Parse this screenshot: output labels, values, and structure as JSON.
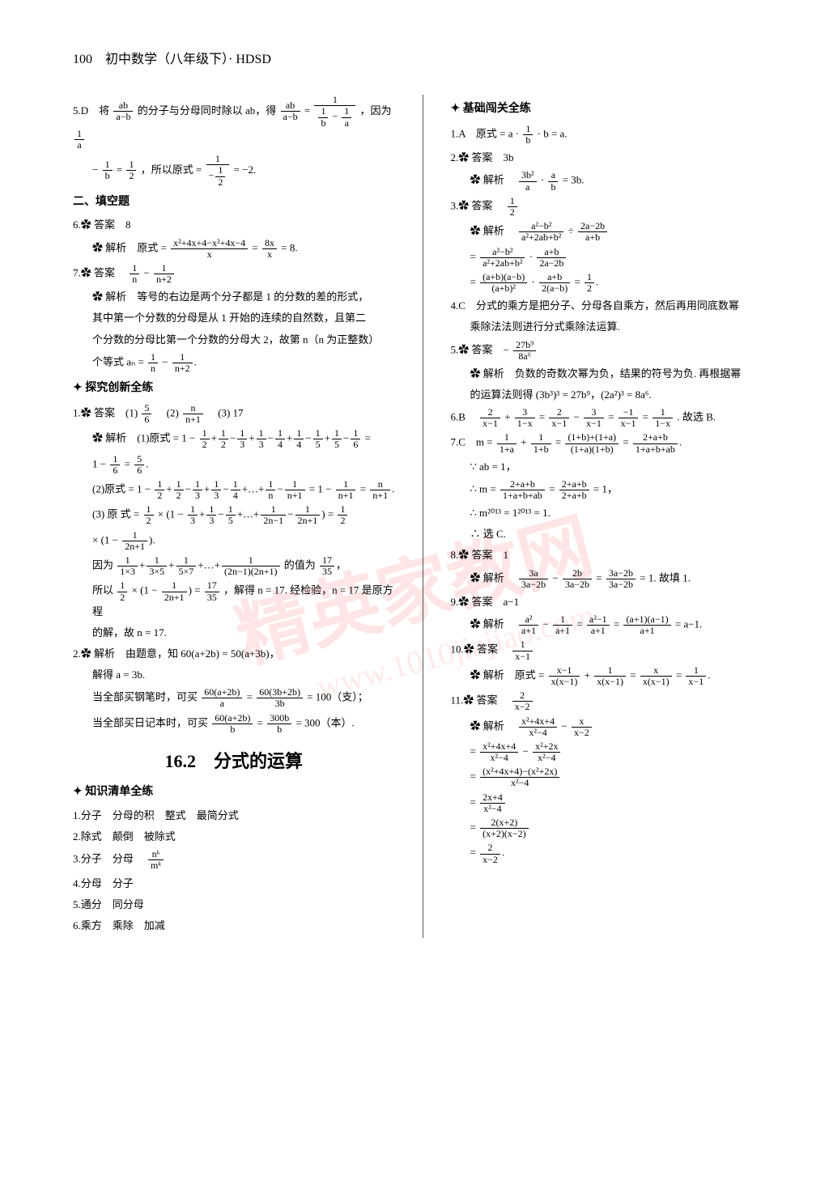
{
  "page_header": "100　初中数学（八年级下）· HDSD",
  "watermark_main": "精英家教网",
  "watermark_sub": "www.1010jiajiao.com",
  "big_title": "16.2　分式的运算",
  "left": {
    "q5_prefix": "5.D　将",
    "q5_text1": "的分子与分母同时除以 ab，得",
    "q5_text2": "，因为",
    "q5_text3": "，所以原式 =",
    "q5_text4": "= −2.",
    "fill_title": "二、填空题",
    "q6_ans": "6.✿ 答案　8",
    "q6_expl": "✿ 解析　原式 =",
    "q6_expl2": "= 8.",
    "q7_ans": "7.✿ 答案　",
    "q7_expl1": "✿ 解析　等号的右边是两个分子都是 1 的分数的差的形式，",
    "q7_expl2": "其中第一个分数的分母是从 1 开始的连续的自然数，且第二",
    "q7_expl3": "个分数的分母比第一个分数的分母大 2，故第 n（n 为正整数）",
    "q7_expl4": "个等式 aₙ =",
    "explore_title": "探究创新全练",
    "e1_ans": "1.✿ 答案　(1)",
    "e1_ans2": "　(2)",
    "e1_ans3": "　(3) 17",
    "e1_s1": "✿ 解析　(1)原式 = 1 −",
    "e1_s1b": "=",
    "e1_s2": "1 −",
    "e1_s2b": "=",
    "e1_r2a": "(2)原式 = 1 −",
    "e1_r2b": "= 1 −",
    "e1_r2c": "=",
    "e1_r3a": "(3) 原 式 =",
    "e1_r3b": "×",
    "e1_r3c": "=",
    "e1_r3d": "×",
    "e1_r4a": "因为",
    "e1_r4b": "的值为",
    "e1_r5a": "所以",
    "e1_r5b": "×",
    "e1_r5c": "=",
    "e1_r5d": "，解得 n = 17. 经检验，n = 17 是原方程",
    "e1_r6": "的解，故 n = 17.",
    "e2_s1": "2.✿ 解析　由题意，知 60(a+2b) = 50(a+3b)，",
    "e2_s2": "解得 a = 3b.",
    "e2_s3a": "当全部买钢笔时，可买",
    "e2_s3b": "=",
    "e2_s3c": "= 100（支）；",
    "e2_s4a": "当全部买日记本时，可买",
    "e2_s4b": "=",
    "e2_s4c": "= 300（本）.",
    "know_title": "知识清单全练",
    "k1": "1.分子　分母的积　整式　最简分式",
    "k2": "2.除式　颠倒　被除式",
    "k3": "3.分子　分母　",
    "k4": "4.分母　分子",
    "k5": "5.通分　同分母",
    "k6": "6.乘方　乘除　加减"
  },
  "right": {
    "basic_title": "基础闯关全练",
    "r1": "1.A　原式 = a ·",
    "r1b": "· b = a.",
    "r2a": "2.✿ 答案　3b",
    "r2b": "✿ 解析　",
    "r2c": "·",
    "r2d": "= 3b.",
    "r3a": "3.✿ 答案　",
    "r3b": "✿ 解析　",
    "r3c": "÷",
    "r3d": "=",
    "r3e": "·",
    "r3f": "=",
    "r3g": "·",
    "r3h": "=",
    "r4": "4.C　分式的乘方是把分子、分母各自乘方，然后再用同底数幂",
    "r4b": "乘除法法则进行分式乘除法运算.",
    "r5a": "5.✿ 答案　−",
    "r5b": "✿ 解析　负数的奇数次幂为负，结果的符号为负. 再根据幂",
    "r5c": "的运算法则得 (3b³)³ = 27b⁹，(2a²)³ = 8a⁶.",
    "r6a": "6.B　",
    "r6b": "+",
    "r6c": "=",
    "r6d": "−",
    "r6e": "=",
    "r6f": "=",
    "r6g": ". 故选 B.",
    "r7a": "7.C　m =",
    "r7b": "+",
    "r7c": "=",
    "r7d": "=",
    "r7e": "∵ ab = 1，",
    "r7f": "∴ m =",
    "r7g": "=",
    "r7h": "= 1，",
    "r7i": "∴ m²⁰¹³ = 1²⁰¹³ = 1.",
    "r7j": "∴ 选 C.",
    "r8a": "8.✿ 答案　1",
    "r8b": "✿ 解析　",
    "r8c": "−",
    "r8d": "=",
    "r8e": "= 1. 故填 1.",
    "r9a": "9.✿ 答案　a−1",
    "r9b": "✿ 解析　",
    "r9c": "−",
    "r9d": "=",
    "r9e": "=",
    "r9f": "= a−1.",
    "r10a": "10.✿ 答案　",
    "r10b": "✿ 解析　原式 =",
    "r10c": "+",
    "r10d": "=",
    "r10e": "=",
    "r11a": "11.✿ 答案　",
    "r11b": "✿ 解析　",
    "r11c": "−",
    "r11d": "=",
    "r11e": "−",
    "r11f": "=",
    "r11g": "=",
    "r11h": "=",
    "r11i": "="
  },
  "fracs": {
    "ab_amb": {
      "n": "ab",
      "d": "a−b"
    },
    "1_1b1a": {
      "n": "1",
      "d": "1/b − 1/a"
    },
    "1a": {
      "n": "1",
      "d": "a"
    },
    "1b": {
      "n": "1",
      "d": "b"
    },
    "12": {
      "n": "1",
      "d": "2"
    },
    "m1_m12": {
      "n": "1",
      "d": "−1/2"
    },
    "poly8x_x": {
      "n": "x²+4x+4−x²+4x−4",
      "d": "x"
    },
    "8x_x": {
      "n": "8x",
      "d": "x"
    },
    "1n": {
      "n": "1",
      "d": "n"
    },
    "1np2": {
      "n": "1",
      "d": "n+2"
    },
    "56": {
      "n": "5",
      "d": "6"
    },
    "nnp1": {
      "n": "n",
      "d": "n+1"
    },
    "16": {
      "n": "1",
      "d": "6"
    },
    "1np1": {
      "n": "1",
      "d": "n+1"
    },
    "12n1": {
      "n": "1",
      "d": "2n−1"
    },
    "12np1": {
      "n": "1",
      "d": "2n+1"
    },
    "1735": {
      "n": "17",
      "d": "35"
    },
    "60a2b_a": {
      "n": "60(a+2b)",
      "d": "a"
    },
    "603b2b_3b": {
      "n": "60(3b+2b)",
      "d": "3b"
    },
    "60a2b_b": {
      "n": "60(a+2b)",
      "d": "b"
    },
    "300b_b": {
      "n": "300b",
      "d": "b"
    },
    "nk_mk": {
      "n": "nᵏ",
      "d": "mᵏ"
    },
    "3b2_a": {
      "n": "3b²",
      "d": "a"
    },
    "a_b": {
      "n": "a",
      "d": "b"
    },
    "a2mb2_poly": {
      "n": "a²−b²",
      "d": "a²+2ab+b²"
    },
    "2am2b_apb": {
      "n": "2a−2b",
      "d": "a+b"
    },
    "apb_2am2b": {
      "n": "a+b",
      "d": "2a−2b"
    },
    "ff1": {
      "n": "(a+b)(a−b)",
      "d": "(a+b)²"
    },
    "ff2": {
      "n": "a+b",
      "d": "2(a−b)"
    },
    "27b9_8a6": {
      "n": "27b⁹",
      "d": "8a⁶"
    },
    "2xm1": {
      "n": "2",
      "d": "x−1"
    },
    "31mx": {
      "n": "3",
      "d": "1−x"
    },
    "3xm1": {
      "n": "3",
      "d": "x−1"
    },
    "m1xm1": {
      "n": "−1",
      "d": "x−1"
    },
    "11mx": {
      "n": "1",
      "d": "1−x"
    },
    "11pa": {
      "n": "1",
      "d": "1+a"
    },
    "11pb": {
      "n": "1",
      "d": "1+b"
    },
    "sum_prod": {
      "n": "(1+b)+(1+a)",
      "d": "(1+a)(1+b)"
    },
    "2ab_1abab": {
      "n": "2+a+b",
      "d": "1+a+b+ab"
    },
    "2ab_2ab": {
      "n": "2+a+b",
      "d": "2+a+b"
    },
    "3a_3a2b": {
      "n": "3a",
      "d": "3a−2b"
    },
    "2b_3a2b": {
      "n": "2b",
      "d": "3a−2b"
    },
    "3a2b_3a2b": {
      "n": "3a−2b",
      "d": "3a−2b"
    },
    "a2_ap1": {
      "n": "a²",
      "d": "a+1"
    },
    "1_ap1": {
      "n": "1",
      "d": "a+1"
    },
    "a2m1_ap1": {
      "n": "a²−1",
      "d": "a+1"
    },
    "fact_ap1": {
      "n": "(a+1)(a−1)",
      "d": "a+1"
    },
    "1_xm1": {
      "n": "1",
      "d": "x−1"
    },
    "xm1_xxm1": {
      "n": "x−1",
      "d": "x(x−1)"
    },
    "1_xxm1": {
      "n": "1",
      "d": "x(x−1)"
    },
    "x_xxm1": {
      "n": "x",
      "d": "x(x−1)"
    },
    "2_xm2": {
      "n": "2",
      "d": "x−2"
    },
    "x24x4_x2m4": {
      "n": "x²+4x+4",
      "d": "x²−4"
    },
    "x_xm2": {
      "n": "x",
      "d": "x−2"
    },
    "x22x_x2m4": {
      "n": "x²+2x",
      "d": "x²−4"
    },
    "diff_x2m4": {
      "n": "(x²+4x+4)−(x²+2x)",
      "d": "x²−4"
    },
    "2x4_x2m4": {
      "n": "2x+4",
      "d": "x²−4"
    },
    "2x2_fact": {
      "n": "2(x+2)",
      "d": "(x+2)(x−2)"
    }
  }
}
